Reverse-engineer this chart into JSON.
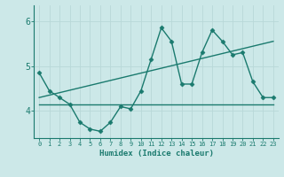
{
  "xlabel": "Humidex (Indice chaleur)",
  "ylabel": "",
  "bg_color": "#cce8e8",
  "line_color": "#1a7a6e",
  "grid_color": "#b8d8d8",
  "ylim": [
    3.4,
    6.35
  ],
  "xlim": [
    -0.5,
    23.5
  ],
  "yticks": [
    4,
    5,
    6
  ],
  "ytick_labels": [
    "4",
    "5",
    "6"
  ],
  "xticks": [
    0,
    1,
    2,
    3,
    4,
    5,
    6,
    7,
    8,
    9,
    10,
    11,
    12,
    13,
    14,
    15,
    16,
    17,
    18,
    19,
    20,
    21,
    22,
    23
  ],
  "series1_x": [
    0,
    1,
    2,
    3,
    4,
    5,
    6,
    7,
    8,
    9,
    10,
    11,
    12,
    13,
    14,
    15,
    16,
    17,
    18,
    19,
    20,
    21,
    22,
    23
  ],
  "series1_y": [
    4.85,
    4.45,
    4.3,
    4.15,
    3.75,
    3.6,
    3.55,
    3.75,
    4.1,
    4.05,
    4.45,
    5.15,
    5.85,
    5.55,
    4.6,
    4.6,
    5.3,
    5.8,
    5.55,
    5.25,
    5.3,
    4.65,
    4.3,
    4.3
  ],
  "series2_x": [
    0,
    23
  ],
  "series2_y": [
    4.15,
    4.15
  ],
  "series3_x": [
    0,
    23
  ],
  "series3_y": [
    4.3,
    5.55
  ],
  "marker_size": 2.5,
  "line_width": 1.0
}
